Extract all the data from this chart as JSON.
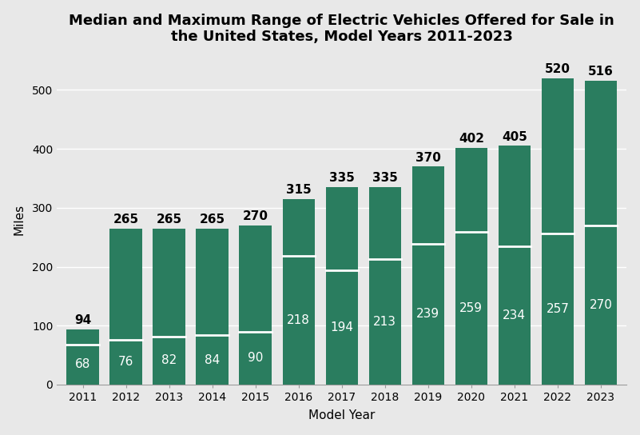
{
  "years": [
    2011,
    2012,
    2013,
    2014,
    2015,
    2016,
    2017,
    2018,
    2019,
    2020,
    2021,
    2022,
    2023
  ],
  "max_range": [
    94,
    265,
    265,
    265,
    270,
    315,
    335,
    335,
    370,
    402,
    405,
    520,
    516
  ],
  "median_range": [
    68,
    76,
    82,
    84,
    90,
    218,
    194,
    213,
    239,
    259,
    234,
    257,
    270
  ],
  "bar_color": "#2a7d5f",
  "median_line_color": "#ffffff",
  "title_line1": "Median and Maximum Range of Electric Vehicles Offered for Sale in",
  "title_line2": "the United States, Model Years 2011-2023",
  "xlabel": "Model Year",
  "ylabel": "Miles",
  "ylim": [
    0,
    560
  ],
  "yticks": [
    0,
    100,
    200,
    300,
    400,
    500
  ],
  "title_fontsize": 13,
  "axis_label_fontsize": 11,
  "tick_fontsize": 10,
  "max_annotation_fontsize": 11,
  "median_annotation_fontsize": 11,
  "bar_width": 0.75,
  "background_color": "#e8e8e8",
  "plot_background_color": "#e8e8e8"
}
